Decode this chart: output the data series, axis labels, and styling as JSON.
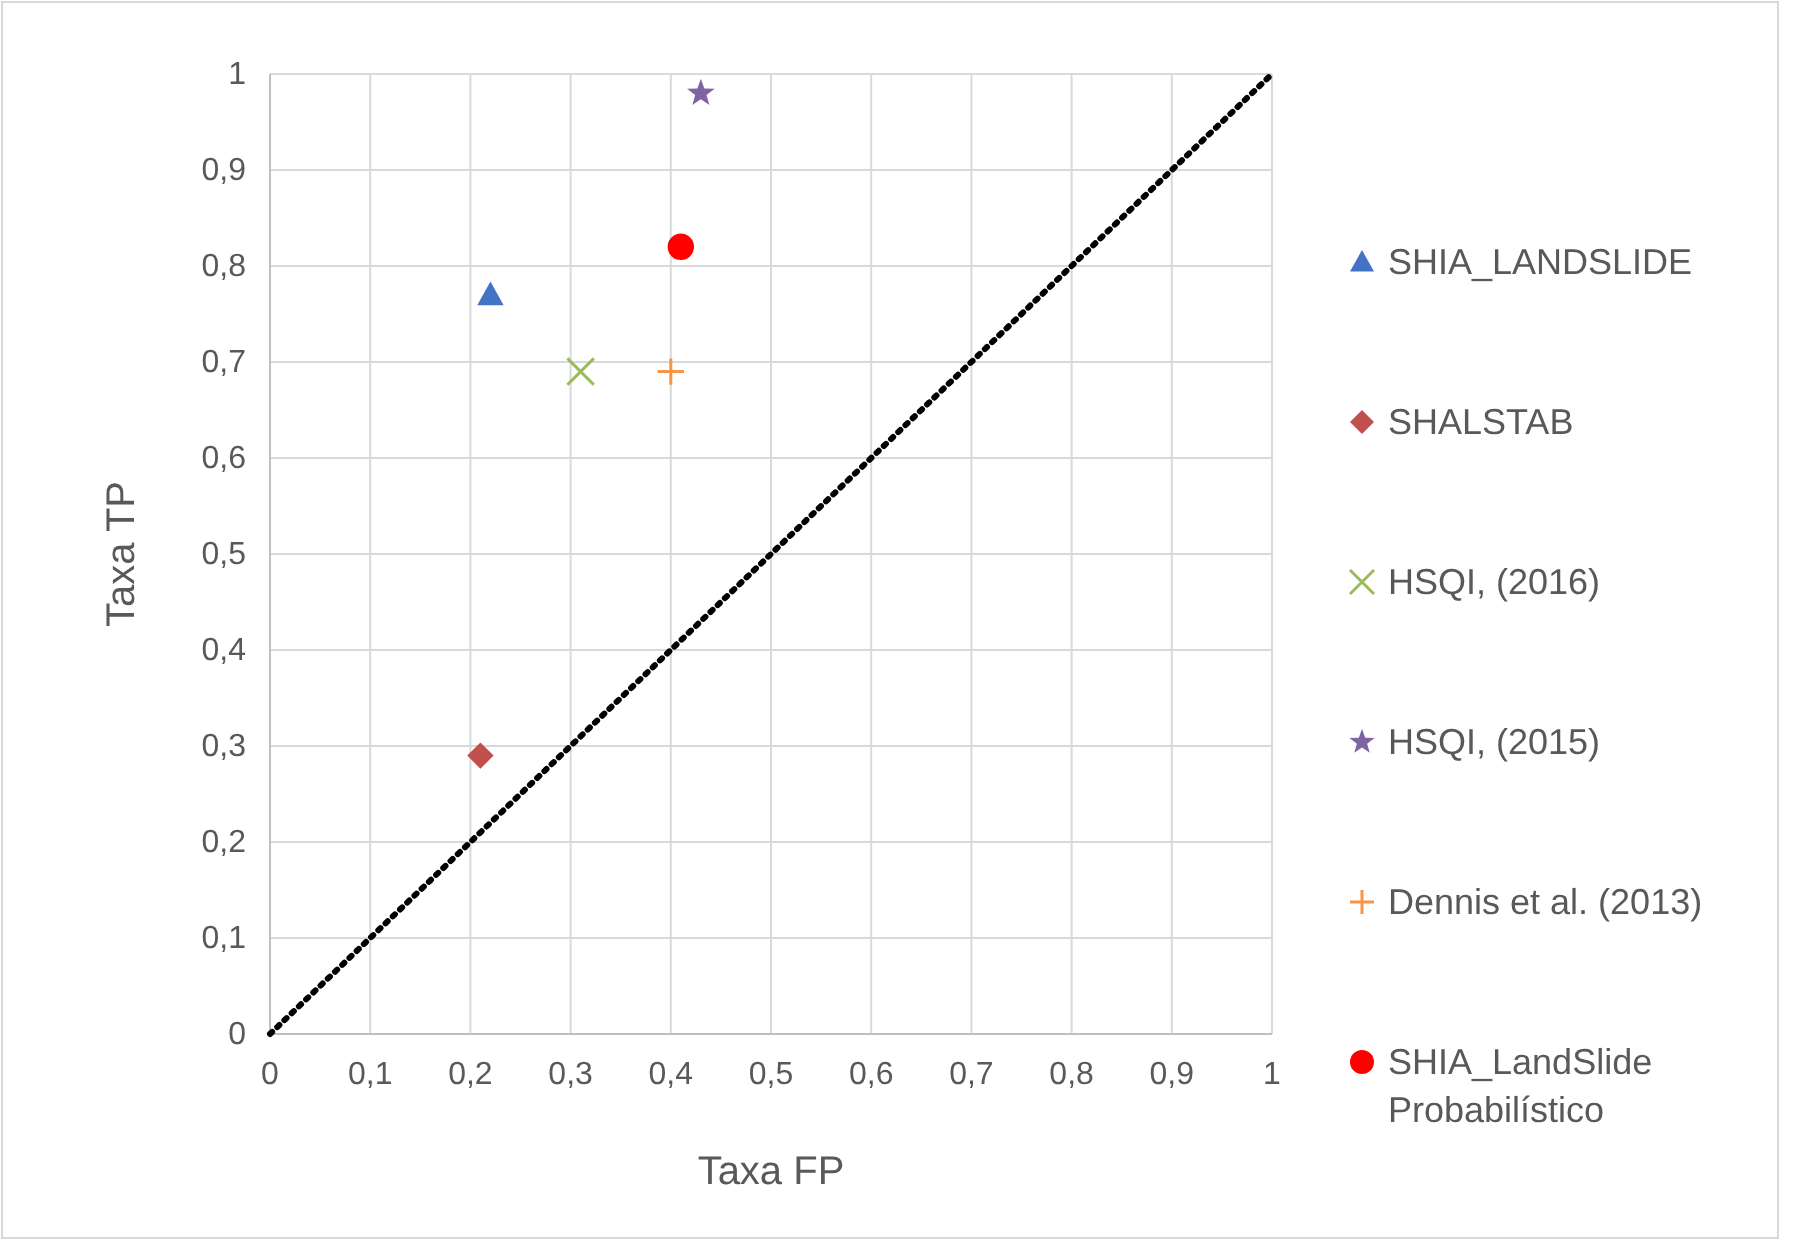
{
  "chart_data": {
    "type": "scatter",
    "xlabel": "Taxa FP",
    "ylabel": "Taxa TP",
    "xlim": [
      0,
      1
    ],
    "ylim": [
      0,
      1
    ],
    "xticks": [
      {
        "value": 0,
        "label": "0"
      },
      {
        "value": 0.1,
        "label": "0,1"
      },
      {
        "value": 0.2,
        "label": "0,2"
      },
      {
        "value": 0.3,
        "label": "0,3"
      },
      {
        "value": 0.4,
        "label": "0,4"
      },
      {
        "value": 0.5,
        "label": "0,5"
      },
      {
        "value": 0.6,
        "label": "0,6"
      },
      {
        "value": 0.7,
        "label": "0,7"
      },
      {
        "value": 0.8,
        "label": "0,8"
      },
      {
        "value": 0.9,
        "label": "0,9"
      },
      {
        "value": 1,
        "label": "1"
      }
    ],
    "yticks": [
      {
        "value": 0,
        "label": "0"
      },
      {
        "value": 0.1,
        "label": "0,1"
      },
      {
        "value": 0.2,
        "label": "0,2"
      },
      {
        "value": 0.3,
        "label": "0,3"
      },
      {
        "value": 0.4,
        "label": "0,4"
      },
      {
        "value": 0.5,
        "label": "0,5"
      },
      {
        "value": 0.6,
        "label": "0,6"
      },
      {
        "value": 0.7,
        "label": "0,7"
      },
      {
        "value": 0.8,
        "label": "0,8"
      },
      {
        "value": 0.9,
        "label": "0,9"
      },
      {
        "value": 1,
        "label": "1"
      }
    ],
    "grid": true,
    "legend": "right",
    "series": [
      {
        "name": "SHIA_LANDSLIDE",
        "color": "#4472c4",
        "marker": "triangle",
        "x": [
          0.22
        ],
        "values": [
          0.77
        ]
      },
      {
        "name": "SHALSTAB",
        "color": "#c0504d",
        "marker": "diamond",
        "x": [
          0.21
        ],
        "values": [
          0.29
        ]
      },
      {
        "name": "HSQI, (2016)",
        "color": "#9bbb59",
        "marker": "cross",
        "x": [
          0.31
        ],
        "values": [
          0.69
        ]
      },
      {
        "name": "HSQI, (2015)",
        "color": "#8064a2",
        "marker": "star",
        "x": [
          0.43
        ],
        "values": [
          0.98
        ]
      },
      {
        "name": "Dennis et al. (2013)",
        "color": "#f79646",
        "marker": "plus",
        "x": [
          0.4
        ],
        "values": [
          0.69
        ]
      },
      {
        "name": "SHIA_LandSlide Probabilístico",
        "color": "#ff0000",
        "marker": "circle",
        "x": [
          0.41
        ],
        "values": [
          0.82
        ]
      },
      {
        "type": "line",
        "color": "#000000",
        "line_style": "dotted",
        "marker": "none",
        "x": [
          0,
          1
        ],
        "values": [
          0,
          1
        ]
      }
    ]
  }
}
